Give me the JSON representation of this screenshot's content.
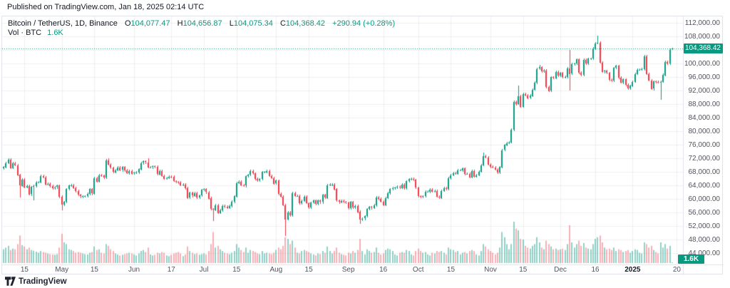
{
  "header": {
    "published": "Published on TradingView.com, Jan 18, 2025 02:14 UTC"
  },
  "legend": {
    "title": "Bitcoin / TetherUS, 1D, Binance",
    "ohlc": [
      {
        "label": "O",
        "value": "104,077.47"
      },
      {
        "label": "H",
        "value": "104,656.87"
      },
      {
        "label": "L",
        "value": "104,075.34"
      },
      {
        "label": "C",
        "value": "104,368.42"
      }
    ],
    "change": "+290.94 (+0.28%)",
    "vol_label": "Vol · BTC",
    "vol_value": "1.6K"
  },
  "axes": {
    "price_ticks": [
      {
        "label": "112,000.00",
        "k": 112
      },
      {
        "label": "108,000.00",
        "k": 108
      },
      {
        "label": "104,000.00",
        "k": 104
      },
      {
        "label": "100,000.00",
        "k": 100
      },
      {
        "label": "96,000.00",
        "k": 96
      },
      {
        "label": "92,000.00",
        "k": 92
      },
      {
        "label": "88,000.00",
        "k": 88
      },
      {
        "label": "84,000.00",
        "k": 84
      },
      {
        "label": "80,000.00",
        "k": 80
      },
      {
        "label": "76,000.00",
        "k": 76
      },
      {
        "label": "72,000.00",
        "k": 72
      },
      {
        "label": "68,000.00",
        "k": 68
      },
      {
        "label": "64,000.00",
        "k": 64
      },
      {
        "label": "60,000.00",
        "k": 60
      },
      {
        "label": "56,000.00",
        "k": 56
      },
      {
        "label": "52,000.00",
        "k": 52
      },
      {
        "label": "48,000.00",
        "k": 48
      },
      {
        "label": "44,000.00",
        "k": 44
      }
    ],
    "time_ticks": [
      {
        "label": "15",
        "i": 9
      },
      {
        "label": "May",
        "i": 25
      },
      {
        "label": "15",
        "i": 39
      },
      {
        "label": "Jun",
        "i": 56
      },
      {
        "label": "17",
        "i": 72
      },
      {
        "label": "Jul",
        "i": 86
      },
      {
        "label": "15",
        "i": 100
      },
      {
        "label": "Aug",
        "i": 117
      },
      {
        "label": "15",
        "i": 131
      },
      {
        "label": "Sep",
        "i": 148
      },
      {
        "label": "16",
        "i": 163
      },
      {
        "label": "Oct",
        "i": 178
      },
      {
        "label": "15",
        "i": 192
      },
      {
        "label": "Nov",
        "i": 209
      },
      {
        "label": "15",
        "i": 223
      },
      {
        "label": "Dec",
        "i": 239
      },
      {
        "label": "16",
        "i": 254
      },
      {
        "label": "2025",
        "i": 270,
        "bold": true
      },
      {
        "label": "20",
        "i": 289
      }
    ],
    "price_badge": "104,368.42",
    "volume_badge": "1.6K"
  },
  "footer": {
    "logo_text": "TradingView"
  },
  "colors": {
    "up": "#089981",
    "down": "#f23645",
    "vol_up": "rgba(8,153,129,0.45)",
    "vol_down": "rgba(242,54,69,0.4)",
    "grid": "rgba(42,46,57,0.07)",
    "border": "#e0e3eb",
    "axis_text": "#50535e",
    "price_line": "#089981"
  },
  "chart_data": {
    "type": "candlestick",
    "title": "Bitcoin / TetherUS, 1D, Binance",
    "start_date": "2024-04-06",
    "end_date": "2025-01-18",
    "displayed_price_range_k": [
      44,
      112
    ],
    "last_bar": {
      "o": 104077.47,
      "h": 104656.87,
      "l": 104075.34,
      "c": 104368.42,
      "change": "+290.94 (+0.28%)",
      "volume": "1.6K BTC"
    },
    "price_line_k": 104.368,
    "scale_note": "closes_k are daily closes in thousands of USDT; open = previous close; default wick = ±0.35k unless overridden",
    "open_first_k": 69.0,
    "default_wick_k": 0.35,
    "closes_k": [
      69.4,
      70.6,
      71.6,
      69.1,
      70.6,
      70.0,
      67.1,
      63.9,
      65.7,
      63.4,
      63.8,
      61.3,
      63.5,
      63.8,
      64.9,
      64.9,
      66.8,
      66.4,
      64.3,
      64.5,
      63.8,
      63.1,
      63.4,
      63.9,
      60.6,
      58.3,
      59.1,
      62.9,
      63.9,
      64.0,
      63.2,
      62.3,
      61.2,
      60.7,
      60.8,
      60.8,
      61.5,
      62.9,
      61.6,
      66.2,
      65.2,
      67.0,
      66.9,
      66.3,
      71.4,
      70.1,
      69.2,
      67.9,
      68.5,
      69.3,
      68.5,
      69.4,
      68.4,
      67.6,
      68.3,
      67.5,
      67.7,
      67.8,
      68.8,
      70.6,
      71.1,
      70.8,
      69.3,
      69.3,
      69.6,
      69.5,
      67.3,
      68.3,
      66.8,
      66.0,
      66.2,
      66.6,
      66.5,
      65.2,
      65.0,
      64.9,
      64.1,
      64.3,
      63.2,
      60.3,
      61.8,
      60.9,
      61.7,
      60.4,
      61.0,
      62.7,
      62.9,
      62.0,
      60.2,
      57.0,
      56.7,
      58.2,
      55.9,
      56.7,
      58.0,
      57.7,
      57.3,
      57.9,
      59.2,
      60.8,
      64.7,
      65.1,
      64.1,
      63.9,
      66.7,
      67.1,
      68.2,
      67.5,
      65.9,
      65.4,
      65.8,
      67.9,
      67.9,
      68.3,
      66.8,
      66.2,
      64.6,
      65.4,
      61.5,
      60.7,
      58.2,
      54.0,
      56.0,
      55.1,
      61.7,
      60.9,
      60.9,
      58.7,
      59.4,
      60.6,
      58.7,
      57.5,
      58.9,
      59.5,
      58.5,
      59.5,
      59.0,
      61.2,
      60.4,
      64.1,
      64.2,
      64.3,
      62.9,
      59.5,
      59.0,
      59.4,
      59.1,
      58.9,
      57.3,
      59.1,
      57.5,
      58.0,
      56.2,
      53.9,
      54.2,
      54.9,
      57.0,
      57.6,
      57.3,
      58.1,
      60.5,
      60.0,
      59.2,
      58.2,
      60.3,
      61.7,
      62.9,
      63.2,
      63.3,
      63.6,
      63.3,
      64.3,
      63.2,
      65.2,
      65.8,
      65.9,
      65.6,
      63.3,
      60.8,
      60.6,
      60.8,
      62.1,
      62.1,
      62.8,
      62.2,
      62.3,
      60.6,
      60.3,
      62.4,
      63.2,
      62.9,
      66.1,
      67.0,
      67.6,
      67.4,
      68.4,
      68.4,
      69.0,
      67.4,
      67.4,
      66.4,
      68.2,
      66.6,
      67.0,
      68.0,
      69.9,
      72.7,
      72.3,
      70.2,
      69.5,
      69.3,
      68.7,
      67.8,
      69.4,
      74.4,
      75.9,
      76.5,
      76.7,
      80.4,
      88.7,
      88.0,
      90.4,
      87.3,
      91.0,
      90.6,
      89.8,
      90.5,
      92.3,
      94.3,
      98.4,
      98.9,
      97.7,
      98.0,
      93.1,
      91.9,
      95.9,
      95.7,
      97.5,
      96.4,
      97.2,
      95.9,
      96.0,
      98.6,
      97.0,
      99.8,
      99.9,
      101.2,
      97.3,
      96.6,
      101.1,
      100.0,
      101.4,
      101.4,
      104.4,
      106.0,
      106.1,
      100.2,
      97.5,
      97.8,
      97.2,
      95.2,
      94.9,
      98.7,
      99.3,
      95.8,
      94.3,
      95.3,
      93.7,
      92.6,
      93.4,
      94.6,
      96.9,
      98.2,
      98.2,
      98.3,
      102.1,
      96.9,
      95.0,
      92.5,
      94.7,
      94.6,
      94.5,
      94.5,
      96.6,
      100.5,
      100.0,
      104.1,
      104.368
    ],
    "volumes_k_btc": [
      40,
      45,
      50,
      38,
      42,
      40,
      55,
      80,
      52,
      48,
      40,
      45,
      38,
      36,
      33,
      30,
      35,
      32,
      30,
      28,
      26,
      25,
      24,
      26,
      45,
      85,
      60,
      55,
      40,
      38,
      35,
      30,
      32,
      30,
      28,
      26,
      25,
      30,
      32,
      48,
      38,
      40,
      30,
      28,
      55,
      50,
      40,
      35,
      28,
      25,
      22,
      24,
      26,
      28,
      30,
      28,
      25,
      22,
      28,
      35,
      38,
      32,
      45,
      25,
      22,
      24,
      30,
      28,
      32,
      30,
      22,
      20,
      24,
      28,
      30,
      32,
      28,
      20,
      25,
      48,
      35,
      30,
      26,
      28,
      24,
      26,
      28,
      25,
      35,
      55,
      90,
      45,
      50,
      40,
      35,
      30,
      28,
      26,
      30,
      35,
      55,
      45,
      38,
      32,
      45,
      30,
      38,
      35,
      32,
      28,
      26,
      35,
      28,
      30,
      28,
      26,
      30,
      38,
      45,
      40,
      50,
      75,
      70,
      55,
      65,
      45,
      30,
      28,
      35,
      38,
      35,
      32,
      28,
      25,
      22,
      28,
      26,
      35,
      30,
      48,
      35,
      28,
      35,
      45,
      30,
      26,
      24,
      22,
      30,
      28,
      35,
      30,
      38,
      70,
      35,
      25,
      40,
      35,
      30,
      32,
      45,
      30,
      25,
      28,
      38,
      42,
      40,
      35,
      25,
      22,
      30,
      32,
      30,
      38,
      35,
      25,
      22,
      35,
      42,
      35,
      30,
      32,
      25,
      22,
      30,
      28,
      35,
      32,
      35,
      30,
      25,
      45,
      40,
      38,
      32,
      35,
      25,
      30,
      32,
      28,
      35,
      38,
      35,
      25,
      22,
      35,
      55,
      48,
      40,
      35,
      30,
      25,
      30,
      45,
      90,
      75,
      55,
      40,
      55,
      120,
      100,
      95,
      70,
      68,
      50,
      45,
      42,
      50,
      55,
      75,
      60,
      45,
      40,
      65,
      55,
      48,
      40,
      42,
      38,
      40,
      42,
      38,
      55,
      110,
      60,
      45,
      55,
      65,
      50,
      58,
      45,
      42,
      40,
      55,
      70,
      75,
      80,
      60,
      45,
      40,
      42,
      38,
      45,
      35,
      40,
      38,
      32,
      35,
      38,
      30,
      35,
      40,
      38,
      30,
      28,
      60,
      55,
      45,
      50,
      38,
      32,
      28,
      60,
      45,
      55,
      42,
      50,
      1.6
    ],
    "wick_overrides": {
      "7": {
        "l": 60.6
      },
      "13": {
        "l": 59.6
      },
      "25": {
        "l": 56.5
      },
      "45": {
        "h": 71.9
      },
      "62": {
        "h": 71.9
      },
      "90": {
        "l": 53.5
      },
      "121": {
        "l": 49.0
      },
      "153": {
        "l": 52.5
      },
      "206": {
        "h": 73.6
      },
      "221": {
        "h": 93.4
      },
      "230": {
        "h": 99.5
      },
      "243": {
        "h": 104.0,
        "l": 92.1
      },
      "255": {
        "h": 108.2
      },
      "275": {
        "h": 102.5
      },
      "282": {
        "l": 89.2
      },
      "287": {
        "o": 104.077,
        "h": 104.657,
        "l": 104.075,
        "c": 104.368
      }
    }
  }
}
